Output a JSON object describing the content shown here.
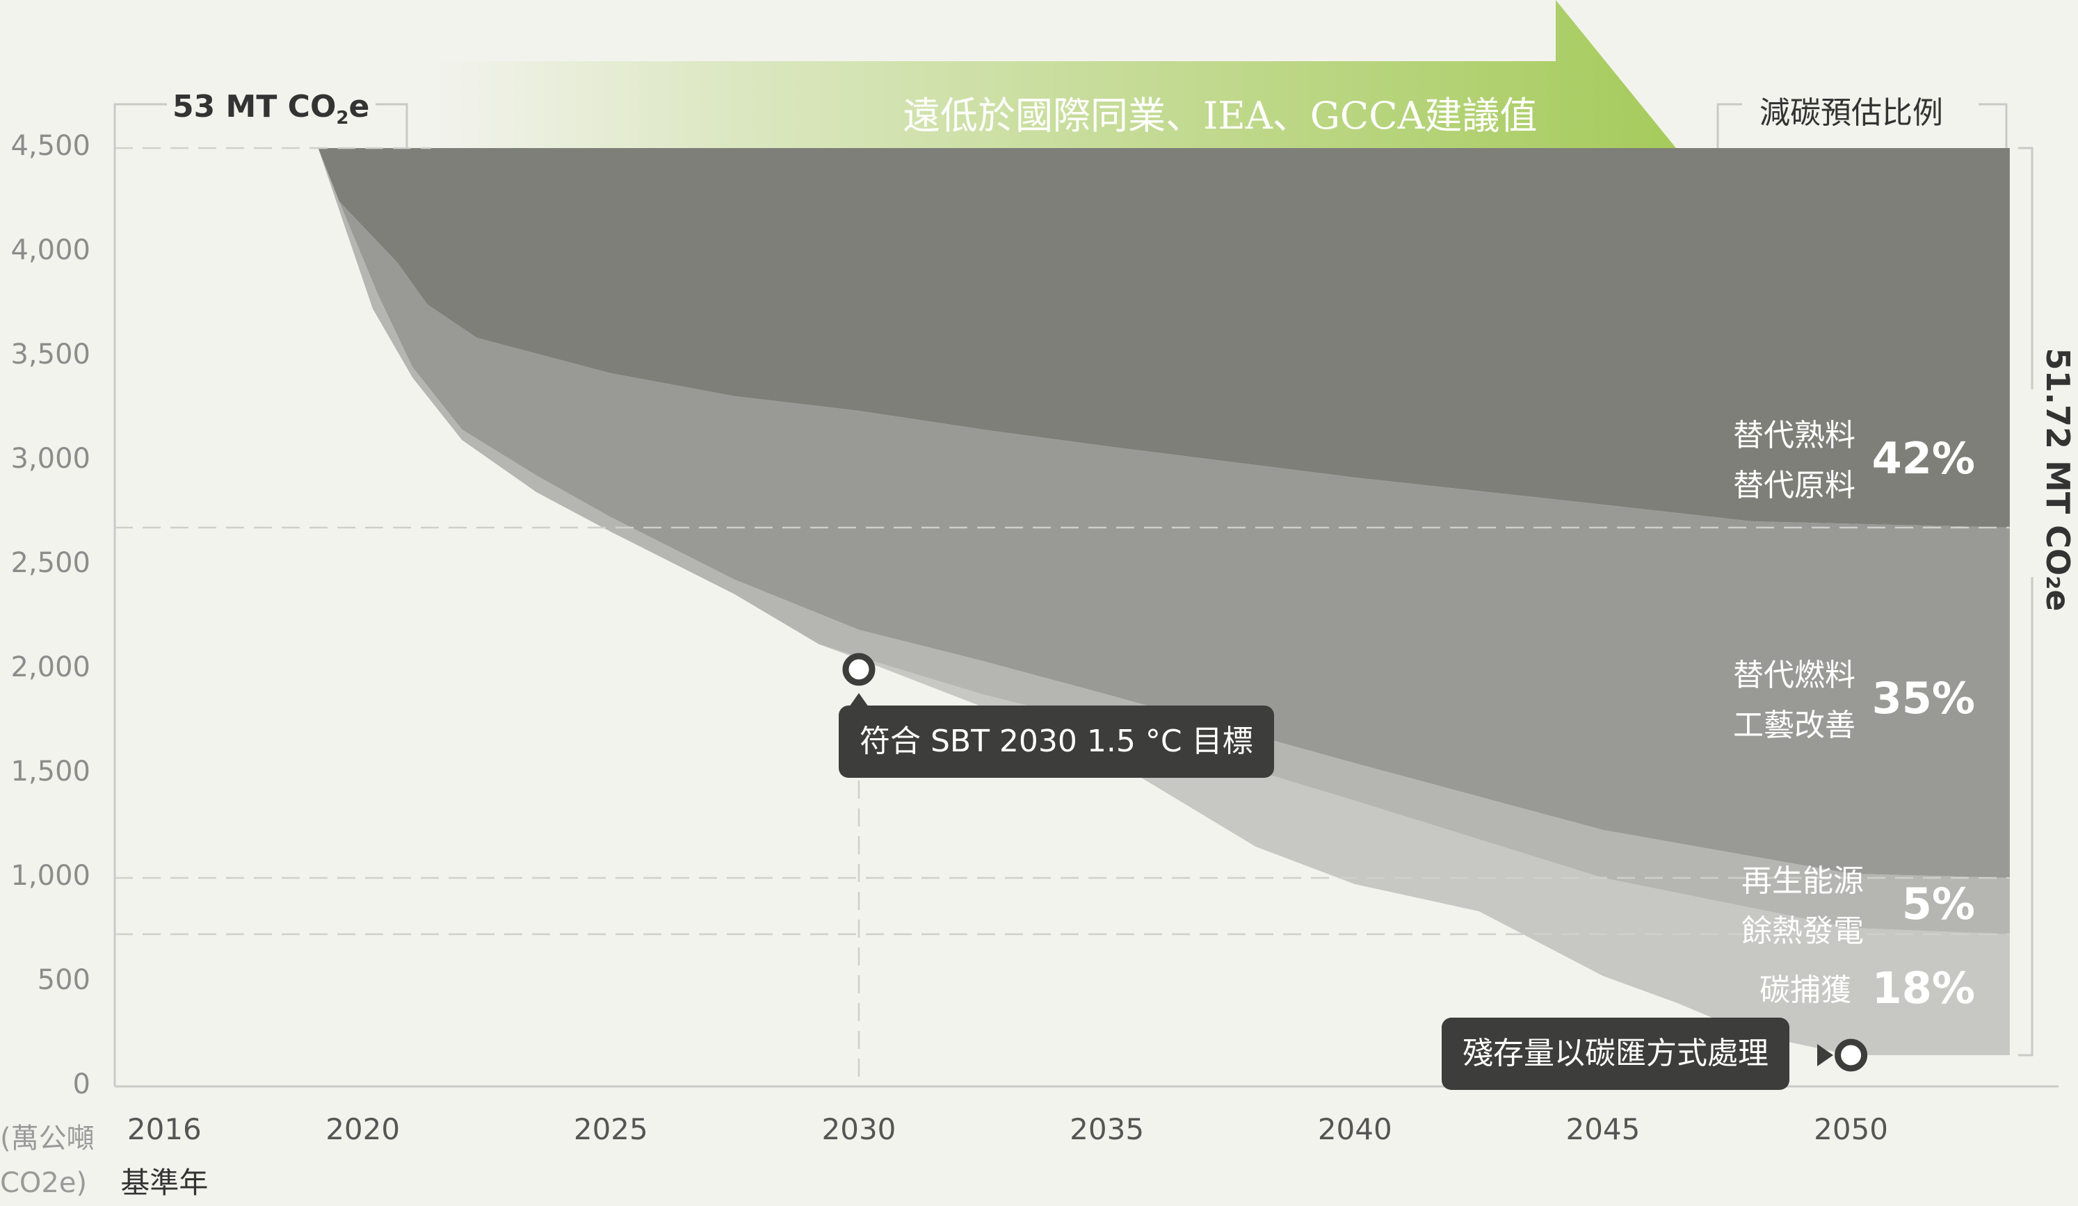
{
  "chart_data": {
    "type": "area",
    "title_left": "53 MT CO",
    "title_left_sub": "2",
    "title_left_tail": "e",
    "banner": "遠低於國際同業、IEA、GCCA建議值",
    "legend_title": "減碳預估比例",
    "right_total": "51.72 MT CO₂e",
    "ylabel": "(萬公噸 CO2e)",
    "ylabel_lines": [
      "(萬公噸",
      "CO2e)"
    ],
    "ylim": [
      0,
      4500
    ],
    "yticks": [
      {
        "value": 0,
        "label": "0"
      },
      {
        "value": 500,
        "label": "500"
      },
      {
        "value": 1000,
        "label": "1,000"
      },
      {
        "value": 1500,
        "label": "1,500"
      },
      {
        "value": 2000,
        "label": "2,000"
      },
      {
        "value": 2500,
        "label": "2,500"
      },
      {
        "value": 3000,
        "label": "3,000"
      },
      {
        "value": 3500,
        "label": "3,500"
      },
      {
        "value": 4000,
        "label": "4,000"
      },
      {
        "value": 4500,
        "label": "4,500"
      }
    ],
    "xticks": [
      {
        "value": 2016,
        "label": "2016",
        "sub": "基準年"
      },
      {
        "value": 2020,
        "label": "2020"
      },
      {
        "value": 2025,
        "label": "2025"
      },
      {
        "value": 2030,
        "label": "2030"
      },
      {
        "value": 2035,
        "label": "2035"
      },
      {
        "value": 2040,
        "label": "2040"
      },
      {
        "value": 2045,
        "label": "2045"
      },
      {
        "value": 2050,
        "label": "2050"
      }
    ],
    "series": [
      {
        "name": "替代熟料 替代原料",
        "lines": [
          "替代熟料",
          "替代原料"
        ],
        "pct": "42%",
        "color": "#7e7f78",
        "lower": [
          [
            2019.1,
            4500
          ],
          [
            2019.5,
            4250
          ],
          [
            2020.7,
            3950
          ],
          [
            2021.3,
            3750
          ],
          [
            2022.3,
            3590
          ],
          [
            2025,
            3420
          ],
          [
            2027.5,
            3310
          ],
          [
            2030,
            3240
          ],
          [
            2032.5,
            3150
          ],
          [
            2035,
            3070
          ],
          [
            2040,
            2920
          ],
          [
            2045,
            2790
          ],
          [
            2048,
            2710
          ],
          [
            2053.2,
            2680
          ]
        ],
        "label_y": 3000
      },
      {
        "name": "替代燃料 工藝改善",
        "lines": [
          "替代燃料",
          "工藝改善"
        ],
        "pct": "35%",
        "color": "#999995",
        "lower": [
          [
            2019.1,
            4500
          ],
          [
            2019.6,
            4200
          ],
          [
            2020.3,
            3800
          ],
          [
            2021,
            3450
          ],
          [
            2022,
            3150
          ],
          [
            2023.5,
            2930
          ],
          [
            2025,
            2730
          ],
          [
            2027.5,
            2430
          ],
          [
            2030,
            2190
          ],
          [
            2032.5,
            2040
          ],
          [
            2035,
            1880
          ],
          [
            2040,
            1550
          ],
          [
            2045,
            1230
          ],
          [
            2050,
            1020
          ],
          [
            2053.2,
            1000
          ]
        ],
        "label_y": 1850
      },
      {
        "name": "再生能源 餘熱發電",
        "lines": [
          "再生能源",
          "餘熱發電"
        ],
        "pct": "5%",
        "color": "#b5b5b1",
        "lower": [
          [
            2019.1,
            4500
          ],
          [
            2019.6,
            4150
          ],
          [
            2020.2,
            3730
          ],
          [
            2021,
            3400
          ],
          [
            2022,
            3100
          ],
          [
            2023.5,
            2850
          ],
          [
            2025,
            2660
          ],
          [
            2027.5,
            2360
          ],
          [
            2029.2,
            2120
          ],
          [
            2030,
            2060
          ],
          [
            2032.5,
            1880
          ],
          [
            2035,
            1730
          ],
          [
            2040,
            1370
          ],
          [
            2045,
            1000
          ],
          [
            2050,
            760
          ],
          [
            2053.2,
            730
          ]
        ],
        "label_y": 865
      },
      {
        "name": "碳捕獲",
        "lines": [
          "碳捕獲"
        ],
        "pct": "18%",
        "color": "#c7c7c3",
        "lower": [
          [
            2019.1,
            4500
          ],
          [
            2019.6,
            4150
          ],
          [
            2020.2,
            3730
          ],
          [
            2021,
            3400
          ],
          [
            2022,
            3100
          ],
          [
            2023.5,
            2850
          ],
          [
            2025,
            2660
          ],
          [
            2027.5,
            2360
          ],
          [
            2029.2,
            2120
          ],
          [
            2030,
            2050
          ],
          [
            2032.5,
            1820
          ],
          [
            2035,
            1580
          ],
          [
            2038,
            1150
          ],
          [
            2040,
            970
          ],
          [
            2042.5,
            840
          ],
          [
            2045,
            530
          ],
          [
            2046.5,
            400
          ],
          [
            2048,
            250
          ],
          [
            2050,
            150
          ],
          [
            2053.2,
            150
          ]
        ],
        "label_y": 460
      }
    ],
    "dashed_levels": [
      2680,
      1000,
      730
    ],
    "annotations": [
      {
        "name": "sbt-2030-target",
        "x": 2030,
        "y": 2000,
        "text": "符合 SBT 2030 1.5 °C 目標"
      },
      {
        "name": "residual-sink",
        "x": 2050,
        "y": 150,
        "text": "殘存量以碳匯方式處理"
      }
    ]
  }
}
